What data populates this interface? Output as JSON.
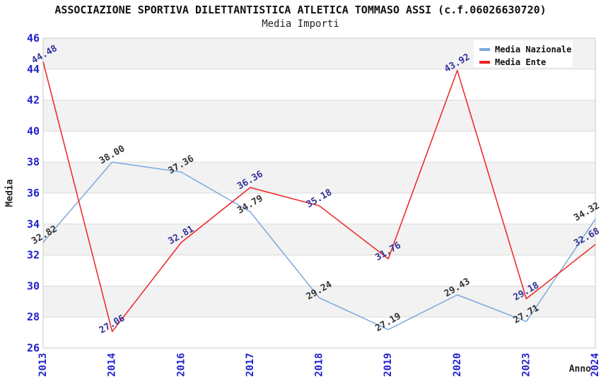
{
  "chart_data": {
    "type": "line",
    "title": "ASSOCIAZIONE SPORTIVA DILETTANTISTICA ATLETICA TOMMASO ASSI (c.f.06026630720)",
    "subtitle": "Media Importi",
    "xlabel": "Anno",
    "ylabel": "Media",
    "categories": [
      "2013",
      "2014",
      "2016",
      "2017",
      "2018",
      "2019",
      "2020",
      "2023",
      "2024"
    ],
    "series": [
      {
        "name": "Media Nazionale",
        "color": "#7aa9dc",
        "label_color": "#333333",
        "values": [
          32.82,
          38.0,
          37.36,
          34.79,
          29.24,
          27.19,
          29.43,
          27.71,
          34.32
        ]
      },
      {
        "name": "Media Ente",
        "color": "#ee2222",
        "label_color": "#333399",
        "values": [
          44.48,
          27.06,
          32.81,
          36.36,
          35.18,
          31.76,
          43.92,
          29.18,
          32.68
        ]
      }
    ],
    "ylim": [
      26,
      46
    ],
    "ytick_step": 2,
    "grid": "horizontal-bands",
    "legend_position": "top-right",
    "colors": {
      "axis_tick": "#2222cc",
      "grid_band": "#f2f2f2",
      "grid_line": "#dadada",
      "plot_border": "#c9c9c9",
      "axis_title": "#222222",
      "legend_background": "#ffffff",
      "legend_text": "#111111",
      "background": "#ffffff"
    }
  }
}
